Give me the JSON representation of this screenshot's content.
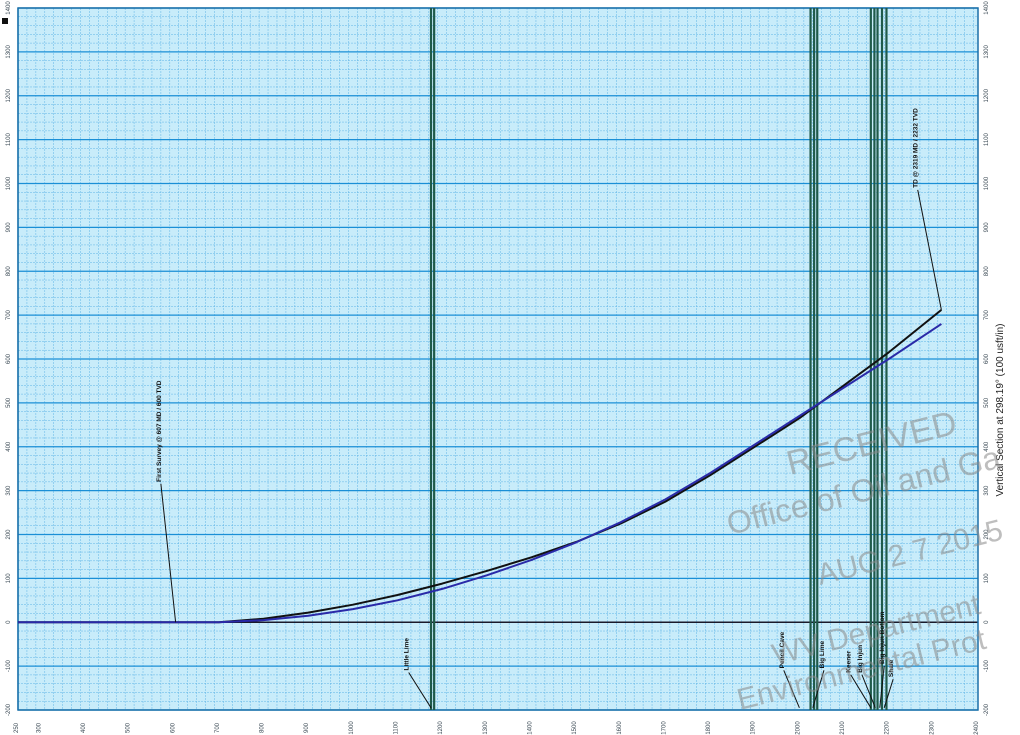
{
  "chart_data": {
    "type": "line",
    "title": "",
    "xlabel": "",
    "ylabel": "Vertical Section at 298.19° (100 usft/in)",
    "xlim": [
      250,
      2400
    ],
    "ylim": [
      -200,
      1400
    ],
    "x_ticks": [
      250,
      300,
      400,
      500,
      600,
      700,
      800,
      900,
      1000,
      1100,
      1200,
      1300,
      1400,
      1500,
      1600,
      1700,
      1800,
      1900,
      2000,
      2100,
      2200,
      2300,
      2400
    ],
    "y_ticks": [
      -200,
      -100,
      0,
      100,
      200,
      300,
      400,
      500,
      600,
      700,
      800,
      900,
      1000,
      1100,
      1200,
      1300,
      1400
    ],
    "series": [
      {
        "color": "#111111",
        "x": [
          250,
          600,
          700,
          800,
          900,
          1000,
          1100,
          1200,
          1300,
          1400,
          1500,
          1600,
          1700,
          1800,
          1900,
          2000,
          2100,
          2200,
          2318
        ],
        "y": [
          0,
          0,
          0,
          8,
          22,
          40,
          62,
          88,
          117,
          148,
          183,
          225,
          275,
          335,
          400,
          465,
          540,
          615,
          712
        ]
      },
      {
        "color": "#2a2aa8",
        "x": [
          250,
          600,
          700,
          800,
          900,
          1000,
          1100,
          1200,
          1300,
          1400,
          1500,
          1600,
          1700,
          1800,
          1900,
          2000,
          2100,
          2200,
          2318
        ],
        "y": [
          0,
          0,
          0,
          5,
          15,
          30,
          50,
          76,
          107,
          142,
          182,
          228,
          280,
          340,
          405,
          470,
          535,
          600,
          680
        ]
      }
    ],
    "vlines": [
      {
        "x": 1175,
        "color": "#1f5a4a"
      },
      {
        "x": 1182,
        "color": "#1f5a4a"
      },
      {
        "x": 2025,
        "color": "#1f5a4a"
      },
      {
        "x": 2033,
        "color": "#1f5a4a"
      },
      {
        "x": 2040,
        "color": "#1f5a4a"
      },
      {
        "x": 2160,
        "color": "#1f5a4a"
      },
      {
        "x": 2168,
        "color": "#1f5a4a"
      },
      {
        "x": 2175,
        "color": "#1f5a4a"
      },
      {
        "x": 2185,
        "color": "#1f5a4a"
      },
      {
        "x": 2195,
        "color": "#1f5a4a"
      }
    ],
    "annotations": [
      {
        "text": "First Survey @ 607 MD / 600 TVD",
        "x": 570,
        "y": 320,
        "to_x": 603,
        "to_y": 0
      },
      {
        "text": "TD @ 2319 MD / 2232 TVD",
        "x": 2265,
        "y": 990,
        "to_x": 2318,
        "to_y": 712
      },
      {
        "text": "Little Lime",
        "x": 1125,
        "y": -110,
        "to_x": 1175,
        "to_y": -195
      },
      {
        "text": "Pencil Cave",
        "x": 1965,
        "y": -105,
        "to_x": 2000,
        "to_y": -195
      },
      {
        "text": "Big Lime",
        "x": 2055,
        "y": -105,
        "to_x": 2030,
        "to_y": -195
      },
      {
        "text": "Keener",
        "x": 2115,
        "y": -115,
        "to_x": 2160,
        "to_y": -195
      },
      {
        "text": "Big Injun",
        "x": 2140,
        "y": -115,
        "to_x": 2170,
        "to_y": -195
      },
      {
        "text": "Big Injun Bottom",
        "x": 2190,
        "y": -95,
        "to_x": 2180,
        "to_y": -195
      },
      {
        "text": "Shale",
        "x": 2210,
        "y": -125,
        "to_x": 2190,
        "to_y": -195
      }
    ],
    "grid": true
  },
  "stamp": {
    "line1": "RECEIVED",
    "line2": "Office of Oil and Ga",
    "line3": "AUG 2 7 2015",
    "line4": "WV Department",
    "line5": "Environmental Prot"
  },
  "colors": {
    "grid_major": "#1a8fd6",
    "grid_minor": "#5fb4e6",
    "paper": "#c8ecfa"
  }
}
